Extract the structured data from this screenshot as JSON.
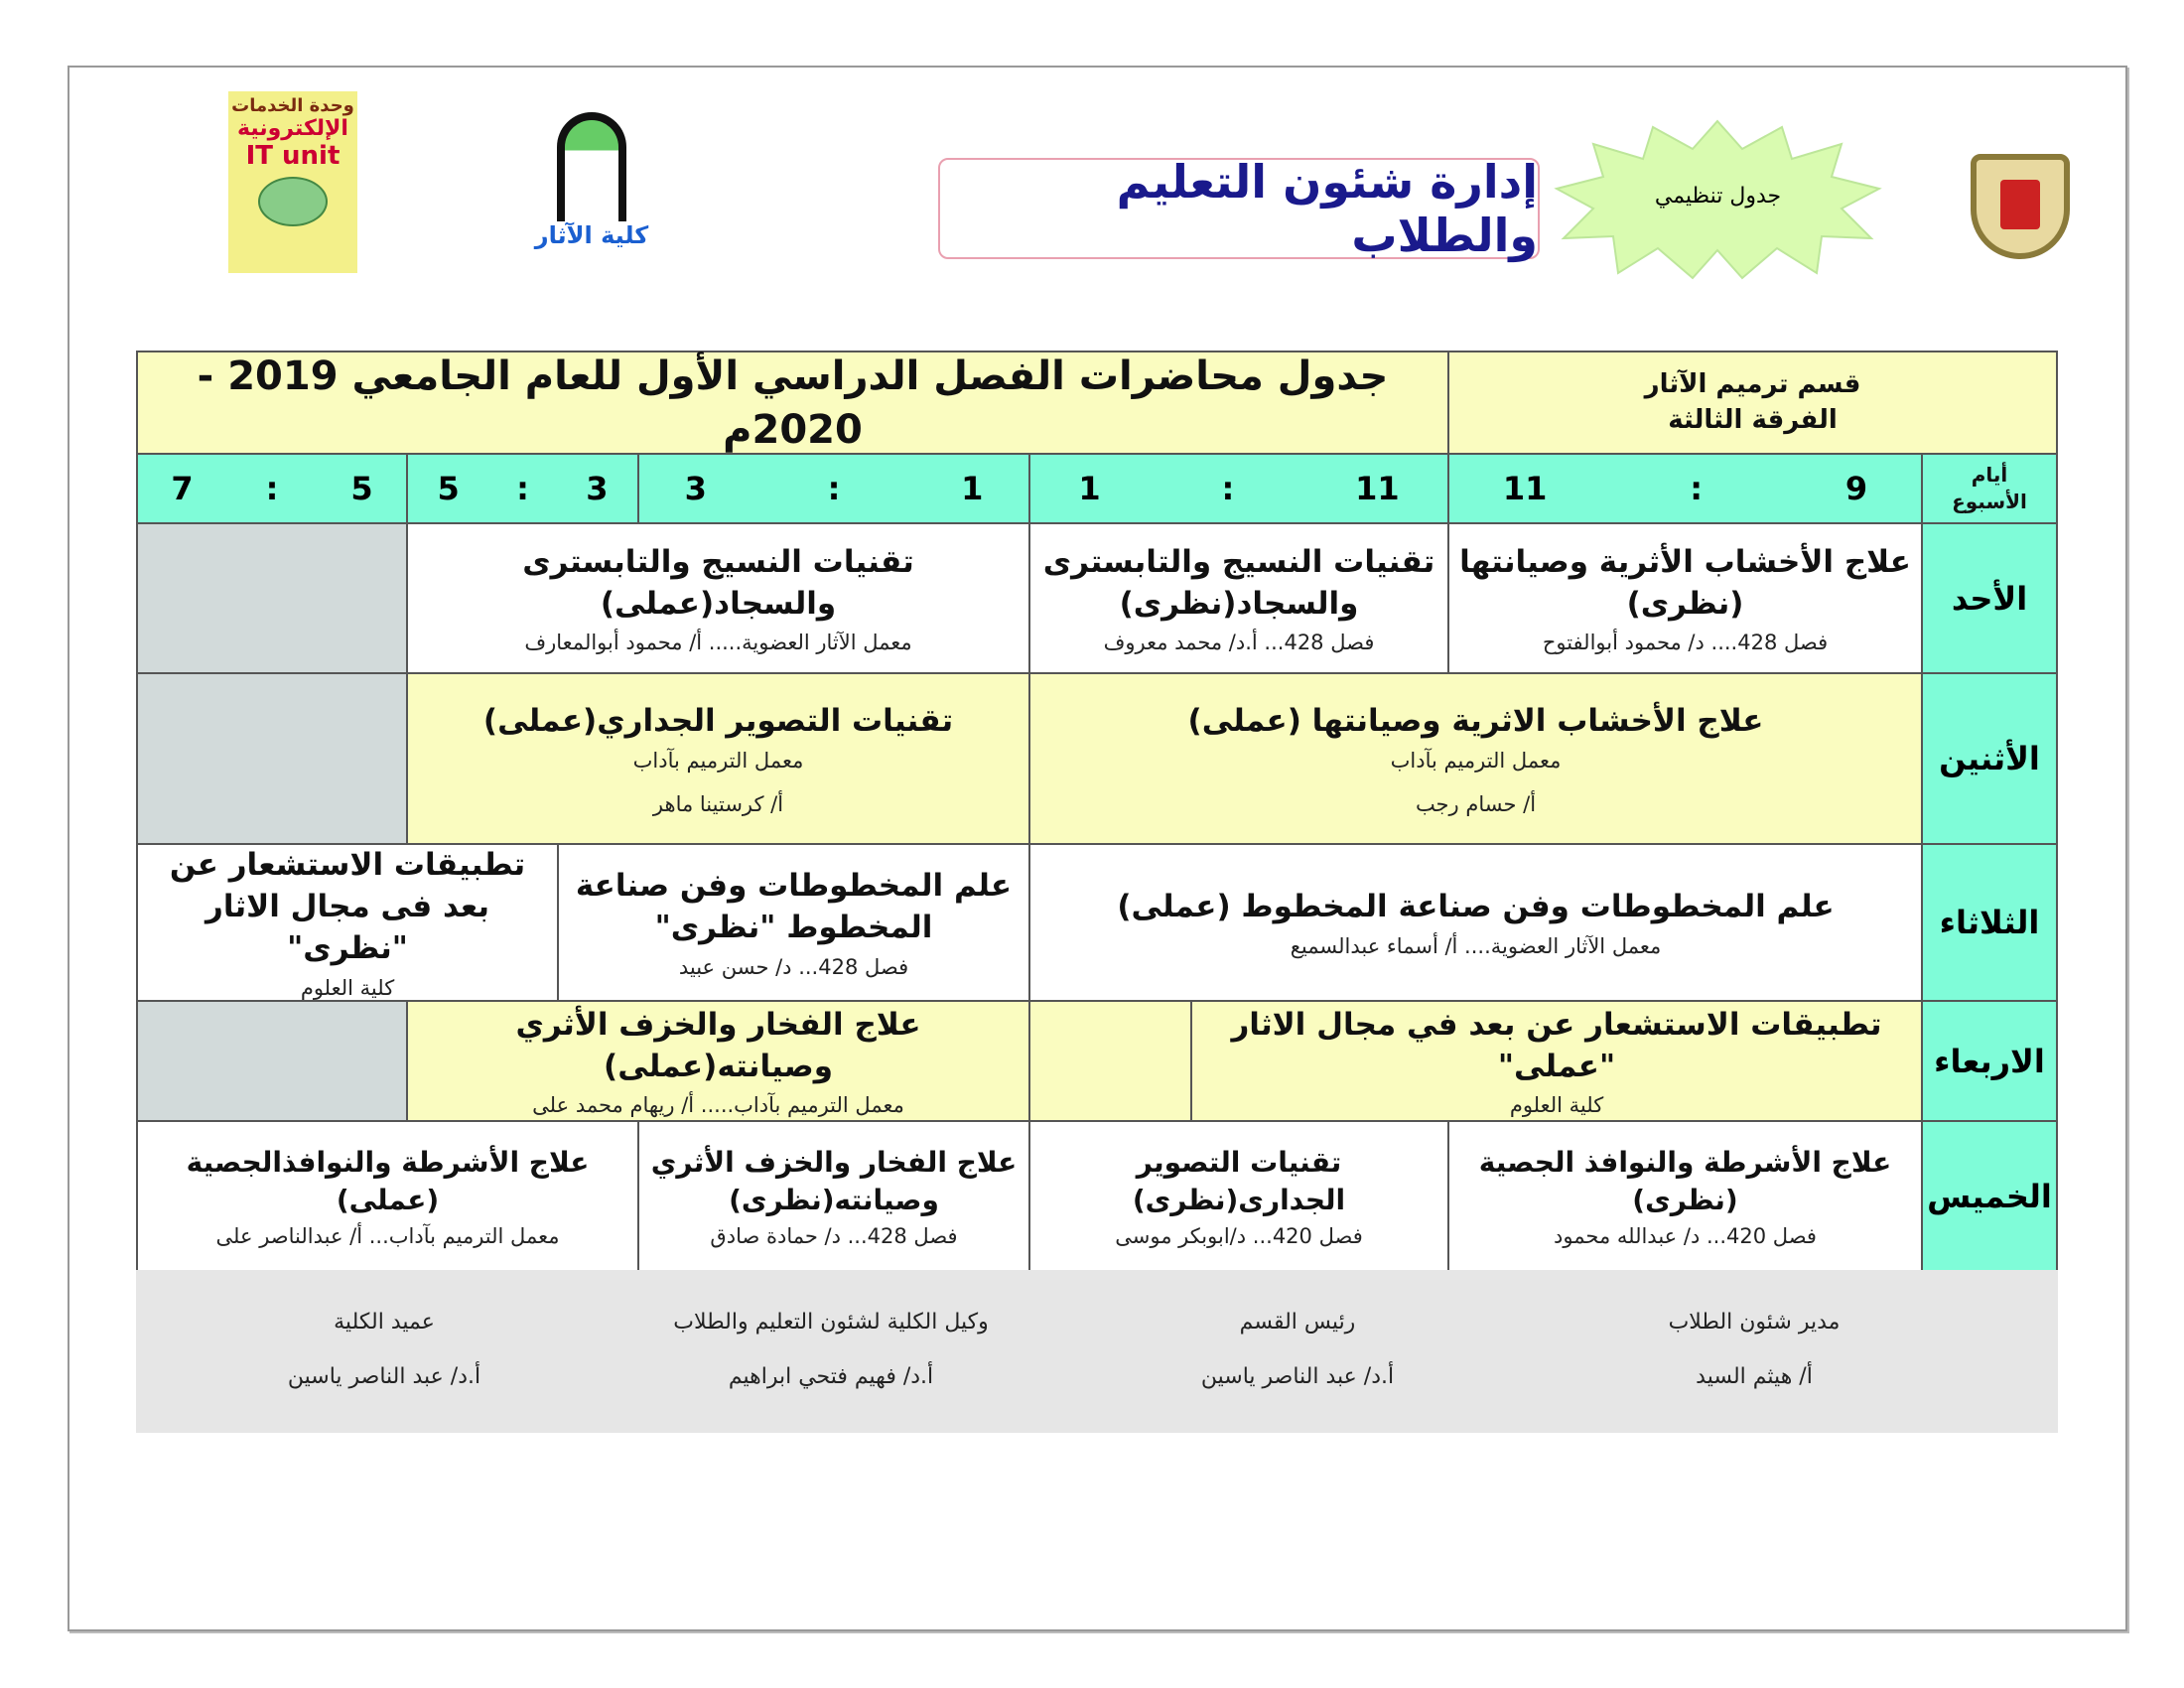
{
  "header": {
    "admin_title": "إدارة شئون التعليم والطلاب",
    "badge": "جدول تنظيمي",
    "it_logo_text": [
      "وحدة الخدمات",
      "الإلكترونية",
      "IT unit"
    ],
    "faculty_logo_text": "كلية الآثار"
  },
  "table": {
    "title": "جدول محاضرات الفصل الدراسي الأول للعام الجامعي 2019 - 2020م",
    "department": "قسم ترميم الآثار",
    "level": "الفرقة الثالثة",
    "days_header": "أيام الأسبوع",
    "times": [
      [
        "9",
        "11"
      ],
      [
        "11",
        "1"
      ],
      [
        "1",
        "3"
      ],
      [
        "3",
        "5"
      ],
      [
        "5",
        "7"
      ]
    ],
    "days": [
      "الأحد",
      "الأثنين",
      "الثلاثاء",
      "الاربعاء",
      "الخميس"
    ],
    "sunday": [
      {
        "title": "علاج الأخشاب الأثرية وصيانتها (نظرى)",
        "sub": "فصل 428.... د/ محمود أبوالفتوح"
      },
      {
        "title": "تقنيات النسيج والتابسترى والسجاد(نظرى)",
        "sub": "فصل 428... أ.د/ محمد معروف"
      },
      {
        "title": "تقنيات النسيج والتابسترى والسجاد(عملى)",
        "sub": "معمل الآثار العضوية..... أ/ محمود أبوالمعارف"
      }
    ],
    "monday": [
      {
        "title": "علاج الأخشاب الاثرية وصيانتها (عملى)",
        "sub": "معمل الترميم بآداب",
        "sub2": "أ/ حسام رجب"
      },
      {
        "title": "تقنيات التصوير الجداري(عملى)",
        "sub": "معمل الترميم بآداب",
        "sub2": "أ/ كرستينا ماهر"
      }
    ],
    "tuesday": [
      {
        "title": "علم المخطوطات وفن صناعة المخطوط (عملى)",
        "sub": "معمل الآثار العضوية.... أ/ أسماء عبدالسميع"
      },
      {
        "title": "علم المخطوطات وفن صناعة المخطوط \"نظرى\"",
        "sub": "فصل 428... د/ حسن عبيد"
      },
      {
        "title": "تطبيقات الاستشعار عن بعد فى مجال الاثار \"نظرى\"",
        "sub": "كلية العلوم"
      }
    ],
    "wednesday": [
      {
        "title": "تطبيقات الاستشعار عن بعد في مجال الاثار \"عملى\"",
        "sub": "كلية العلوم"
      },
      {
        "title": "علاج الفخار والخزف الأثري وصيانته(عملى)",
        "sub": "معمل الترميم بآداب..... أ/ ريهام محمد على"
      }
    ],
    "thursday": [
      {
        "title": "علاج الأشرطة والنوافذ الجصية (نظرى)",
        "sub": "فصل 420... د/ عبدالله محمود"
      },
      {
        "title": "تقنيات التصوير الجدارى(نظرى)",
        "sub": "فصل 420... د/ابوبكر موسى"
      },
      {
        "title": "علاج الفخار والخزف الأثري وصيانته(نظرى)",
        "sub": "فصل 428... د/ حمادة صادق"
      },
      {
        "title": "علاج الأشرطة والنوافذالجصية (عملى)",
        "sub": "معمل الترميم بآداب... أ/ عبدالناصر على"
      }
    ]
  },
  "signatures": [
    {
      "role": "مدير شئون الطلاب",
      "name": "أ/ هيثم السيد"
    },
    {
      "role": "رئيس القسم",
      "name": "أ.د/ عبد الناصر ياسين"
    },
    {
      "role": "وكيل الكلية لشئون التعليم والطلاب",
      "name": "أ.د/ فهيم فتحي ابراهيم"
    },
    {
      "role": "عميد الكلية",
      "name": "أ.د/ عبد الناصر ياسين"
    }
  ],
  "colors": {
    "header": "#fafcc0",
    "time_row": "#7ffcd8",
    "empty": "#d2dada",
    "title_text": "#1a1a8c"
  }
}
